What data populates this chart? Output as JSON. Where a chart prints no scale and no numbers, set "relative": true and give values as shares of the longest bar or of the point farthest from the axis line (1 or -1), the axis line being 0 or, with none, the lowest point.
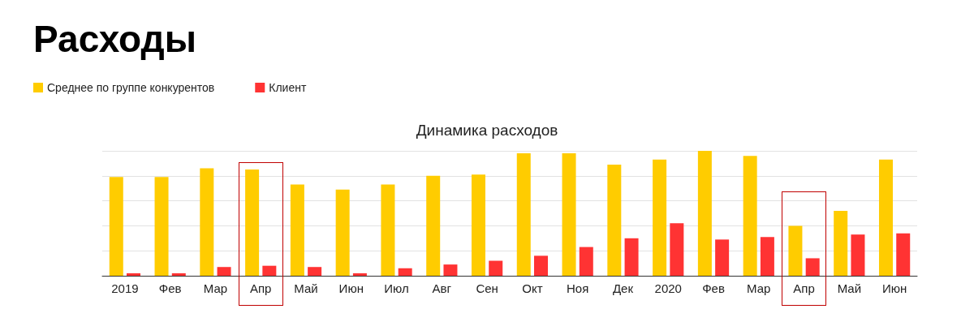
{
  "chart_data": {
    "type": "bar",
    "title": "Расходы",
    "subtitle": "Динамика расходов",
    "categories": [
      "2019",
      "Фев",
      "Мар",
      "Апр",
      "Май",
      "Июн",
      "Июл",
      "Авг",
      "Сен",
      "Окт",
      "Ноя",
      "Дек",
      "2020",
      "Фев",
      "Мар",
      "Апр",
      "Май",
      "Июн"
    ],
    "series": [
      {
        "name": "Среднее по группе конкурентов",
        "color": "#ffcc00",
        "values": [
          0.79,
          0.79,
          0.86,
          0.85,
          0.73,
          0.69,
          0.73,
          0.8,
          0.81,
          0.98,
          0.98,
          0.89,
          0.93,
          1,
          0.96,
          0.4,
          0.52,
          0.93
        ]
      },
      {
        "name": "Клиент",
        "color": "#ff3333",
        "values": [
          0.02,
          0.02,
          0.07,
          0.08,
          0.07,
          0.02,
          0.06,
          0.09,
          0.12,
          0.16,
          0.23,
          0.3,
          0.42,
          0.29,
          0.31,
          0.14,
          0.33,
          0.34
        ]
      }
    ],
    "relative": true,
    "grid": "y",
    "legend": "top left"
  }
}
